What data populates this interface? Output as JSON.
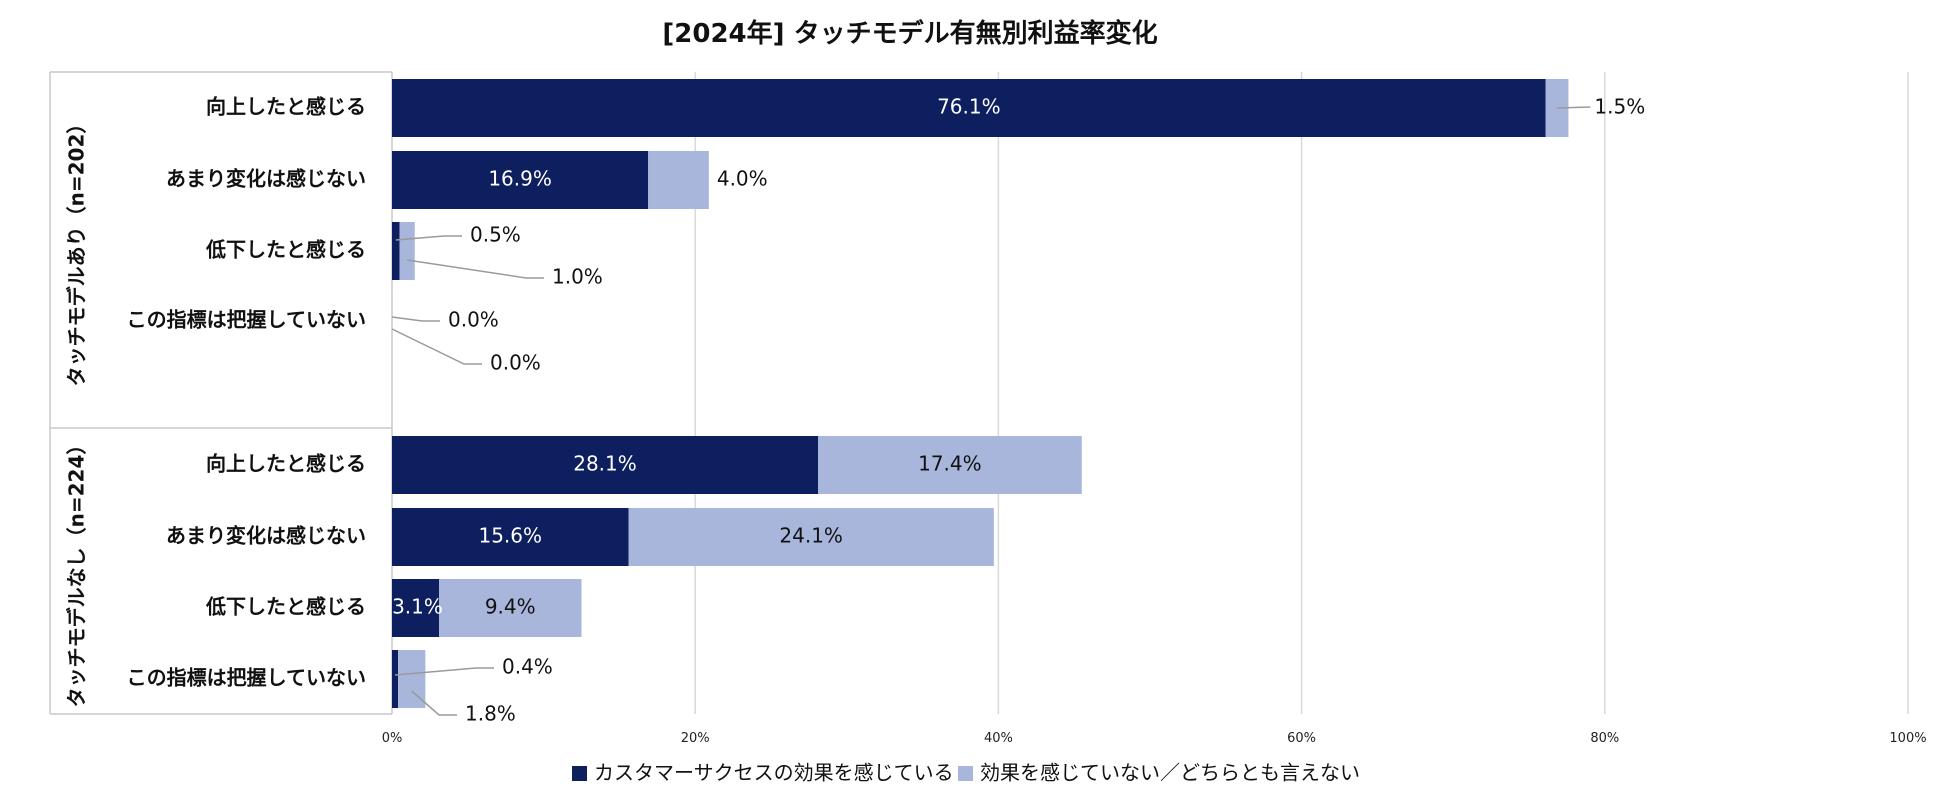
{
  "chart_data": {
    "type": "bar",
    "orientation": "horizontal",
    "stacked": true,
    "title": "[2024年] タッチモデル有無別利益率変化",
    "xlim": [
      0,
      100
    ],
    "xticks": [
      "0%",
      "20%",
      "40%",
      "60%",
      "80%",
      "100%"
    ],
    "grid": true,
    "legend_position": "bottom",
    "series": [
      {
        "name": "カスタマーサクセスの効果を感じている",
        "color": "#0d1f5e"
      },
      {
        "name": "効果を感じていない／どちらとも言えない",
        "color": "#a8b6dc"
      }
    ],
    "groups": [
      {
        "label": "タッチモデルあり（n=202）",
        "categories": [
          "向上したと感じる",
          "あまり変化は感じない",
          "低下したと感じる",
          "この指標は把握していない"
        ],
        "values": [
          [
            76.1,
            1.5
          ],
          [
            16.9,
            4.0
          ],
          [
            0.5,
            1.0
          ],
          [
            0.0,
            0.0
          ]
        ],
        "labels": [
          [
            "76.1%",
            "1.5%"
          ],
          [
            "16.9%",
            "4.0%"
          ],
          [
            "0.5%",
            "1.0%"
          ],
          [
            "0.0%",
            "0.0%"
          ]
        ]
      },
      {
        "label": "タッチモデルなし（n=224）",
        "categories": [
          "向上したと感じる",
          "あまり変化は感じない",
          "低下したと感じる",
          "この指標は把握していない"
        ],
        "values": [
          [
            28.1,
            17.4
          ],
          [
            15.6,
            24.1
          ],
          [
            3.1,
            9.4
          ],
          [
            0.4,
            1.8
          ]
        ],
        "labels": [
          [
            "28.1%",
            "17.4%"
          ],
          [
            "15.6%",
            "24.1%"
          ],
          [
            "3.1%",
            "9.4%"
          ],
          [
            "0.4%",
            "1.8%"
          ]
        ]
      }
    ]
  }
}
